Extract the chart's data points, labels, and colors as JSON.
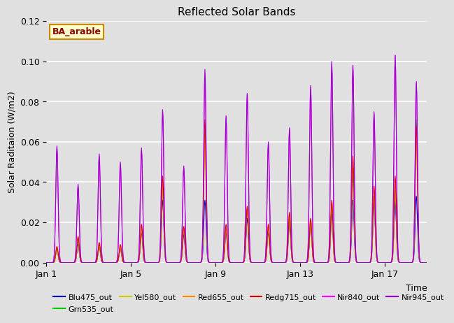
{
  "title": "Reflected Solar Bands",
  "xlabel": "Time",
  "ylabel": "Solar Raditaion (W/m2)",
  "annotation": "BA_arable",
  "ylim": [
    0,
    0.12
  ],
  "yticks": [
    0.0,
    0.02,
    0.04,
    0.06,
    0.08,
    0.1,
    0.12
  ],
  "xtick_labels": [
    "Jan 1",
    "Jan 5",
    "Jan 9",
    "Jan 13",
    "Jan 17"
  ],
  "xtick_positions": [
    0,
    4,
    8,
    12,
    16
  ],
  "n_days": 18,
  "n_points_per_day": 48,
  "peak_sigma": 0.055,
  "band_names": [
    "Blu475_out",
    "Grn535_out",
    "Yel580_out",
    "Red655_out",
    "Redg715_out",
    "Nir840_out",
    "Nir945_out"
  ],
  "band_colors": [
    "#0000cc",
    "#00cc00",
    "#cccc00",
    "#ff8800",
    "#dd0000",
    "#ff00ff",
    "#9900cc"
  ],
  "peak_heights": {
    "Blu475_out": [
      0.007,
      0.009,
      0.008,
      0.007,
      0.015,
      0.031,
      0.014,
      0.031,
      0.015,
      0.022,
      0.015,
      0.02,
      0.02,
      0.024,
      0.031,
      0.029,
      0.03,
      0.033
    ],
    "Grn535_out": [
      0.007,
      0.011,
      0.009,
      0.008,
      0.017,
      0.036,
      0.017,
      0.066,
      0.017,
      0.026,
      0.017,
      0.023,
      0.021,
      0.028,
      0.043,
      0.033,
      0.038,
      0.071
    ],
    "Yel580_out": [
      0.007,
      0.012,
      0.009,
      0.008,
      0.017,
      0.038,
      0.017,
      0.058,
      0.017,
      0.027,
      0.017,
      0.023,
      0.021,
      0.029,
      0.048,
      0.033,
      0.038,
      0.062
    ],
    "Red655_out": [
      0.007,
      0.012,
      0.009,
      0.008,
      0.018,
      0.04,
      0.017,
      0.063,
      0.017,
      0.027,
      0.017,
      0.024,
      0.021,
      0.029,
      0.048,
      0.033,
      0.038,
      0.063
    ],
    "Redg715_out": [
      0.008,
      0.013,
      0.01,
      0.009,
      0.019,
      0.043,
      0.018,
      0.071,
      0.019,
      0.028,
      0.019,
      0.025,
      0.022,
      0.031,
      0.053,
      0.038,
      0.043,
      0.068
    ],
    "Nir840_out": [
      0.057,
      0.038,
      0.053,
      0.049,
      0.056,
      0.075,
      0.047,
      0.094,
      0.072,
      0.084,
      0.059,
      0.066,
      0.087,
      0.099,
      0.098,
      0.074,
      0.103,
      0.089
    ],
    "Nir945_out": [
      0.058,
      0.039,
      0.054,
      0.05,
      0.057,
      0.076,
      0.048,
      0.096,
      0.073,
      0.084,
      0.06,
      0.067,
      0.088,
      0.1,
      0.098,
      0.075,
      0.103,
      0.09
    ]
  },
  "background_color": "#e0e0e0",
  "plot_bg_color": "#e0e0e0",
  "grid_color": "white",
  "annotation_bg": "#ffffcc",
  "annotation_border": "#cc8800",
  "annotation_text_color": "#880000",
  "legend_ncol": 6,
  "legend_fontsize": 8
}
